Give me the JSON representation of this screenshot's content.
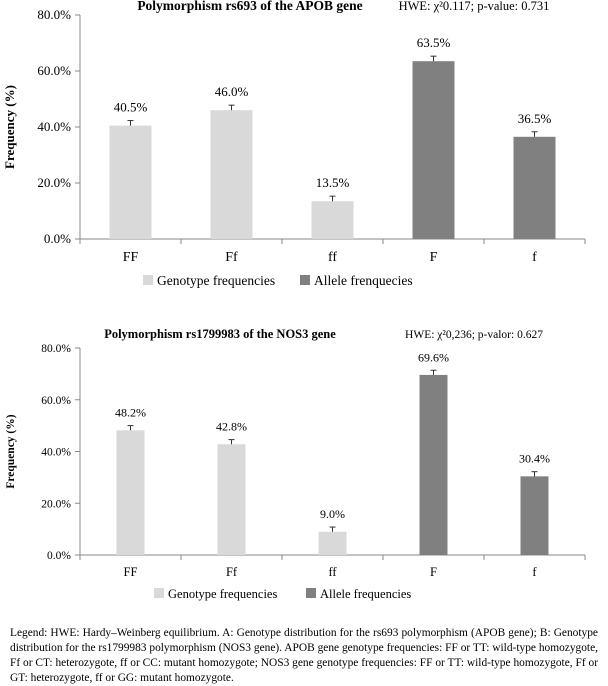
{
  "chart_data": [
    {
      "type": "bar",
      "title": "Polymorphism rs693 of the APOB gene",
      "annotation": "HWE: χ²0.117; p-value: 0.731",
      "ylabel": "Frequency (%)",
      "ylim": [
        0,
        80
      ],
      "yticks": [
        "0.0%",
        "20.0%",
        "40.0%",
        "60.0%",
        "80.0%"
      ],
      "categories": [
        "FF",
        "Ff",
        "ff",
        "F",
        "f"
      ],
      "series": [
        {
          "name": "Genotype frequencies",
          "color": "#d9d9d9",
          "values": [
            40.5,
            46.0,
            13.5,
            null,
            null
          ],
          "labels": [
            "40.5%",
            "46.0%",
            "13.5%",
            "",
            ""
          ]
        },
        {
          "name": "Allele frenquecies",
          "color": "#808080",
          "values": [
            null,
            null,
            null,
            63.5,
            36.5
          ],
          "labels": [
            "",
            "",
            "",
            "63.5%",
            "36.5%"
          ]
        }
      ],
      "error_bars": [
        1.8,
        1.8,
        1.8,
        1.8,
        1.8
      ],
      "grid": false,
      "legend": "bottom"
    },
    {
      "type": "bar",
      "title": "Polymorphism  rs1799983 of the NOS3 gene",
      "annotation": "HWE: χ²0,236; p-valor: 0.627",
      "ylabel": "Frequency (%)",
      "ylim": [
        0,
        80
      ],
      "yticks": [
        "0.0%",
        "20.0%",
        "40.0%",
        "60.0%",
        "80.0%"
      ],
      "categories": [
        "FF",
        "Ff",
        "ff",
        "F",
        "f"
      ],
      "series": [
        {
          "name": "Genotype frequencies",
          "color": "#d9d9d9",
          "values": [
            48.2,
            42.8,
            9.0,
            null,
            null
          ],
          "labels": [
            "48.2%",
            "42.8%",
            "9.0%",
            "",
            ""
          ]
        },
        {
          "name": "Allele frequencies",
          "color": "#808080",
          "values": [
            null,
            null,
            null,
            69.6,
            30.4
          ],
          "labels": [
            "",
            "",
            "",
            "69.6%",
            "30.4%"
          ]
        }
      ],
      "error_bars": [
        1.8,
        1.8,
        1.8,
        1.8,
        1.8
      ],
      "grid": false,
      "legend": "bottom"
    }
  ],
  "caption": "Legend: HWE: Hardy–Weinberg equilibrium. A: Genotype distribution for the rs693 polymorphism (APOB gene); B: Genotype distribution for the rs1799983 polymorphism (NOS3 gene). APOB gene genotype frequencies: FF or TT: wild-type homozygote, Ff or CT: heterozygote, ff or CC: mutant homozygote; NOS3 gene genotype frequencies: FF or TT: wild-type homozygote, Ff or GT: heterozygote, ff or GG: mutant homozygote."
}
